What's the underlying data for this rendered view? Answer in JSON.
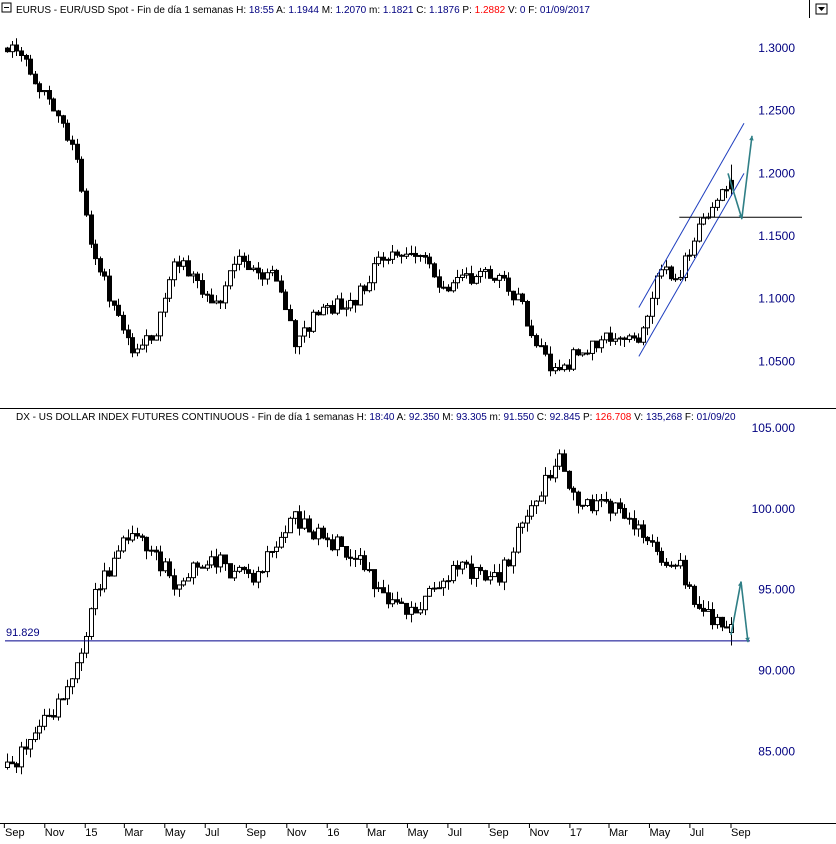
{
  "panels": {
    "top": {
      "header_prefix": "EURUS - EUR/USD Spot - Fin de día 1 semanas",
      "header_fields": [
        {
          "label": "H:",
          "value": "18:55",
          "color": "#000080"
        },
        {
          "label": "A:",
          "value": "1.1944",
          "color": "#000080"
        },
        {
          "label": "M:",
          "value": "1.2070",
          "color": "#000080"
        },
        {
          "label": "m:",
          "value": "1.1821",
          "color": "#000080"
        },
        {
          "label": "C:",
          "value": "1.1876",
          "color": "#000080"
        },
        {
          "label": "P:",
          "value": "1.2882",
          "color": "#ff0000"
        },
        {
          "label": "V:",
          "value": "0",
          "color": "#000080"
        },
        {
          "label": "F:",
          "value": "01/09/2017",
          "color": "#000080"
        }
      ]
    },
    "bottom": {
      "header_prefix": "DX - US DOLLAR INDEX FUTURES CONTINUOUS - Fin de día 1 semanas",
      "header_fields": [
        {
          "label": "H:",
          "value": "18:40",
          "color": "#000080"
        },
        {
          "label": "A:",
          "value": "92.350",
          "color": "#000080"
        },
        {
          "label": "M:",
          "value": "93.305",
          "color": "#000080"
        },
        {
          "label": "m:",
          "value": "91.550",
          "color": "#000080"
        },
        {
          "label": "C:",
          "value": "92.845",
          "color": "#000080"
        },
        {
          "label": "P:",
          "value": "126.708",
          "color": "#ff0000"
        },
        {
          "label": "V:",
          "value": "135,268",
          "color": "#000080"
        },
        {
          "label": "F:",
          "value": "01/09/20",
          "color": "#000080"
        }
      ],
      "support_label": "91.829"
    }
  },
  "chart_data": [
    {
      "type": "candlestick",
      "title": "EURUS - EUR/USD Spot - Fin de día 1 semanas",
      "timeframe": "weekly",
      "x_range": [
        "2014-09",
        "2017-09"
      ],
      "ylim": [
        1.02,
        1.32
      ],
      "y_ticks": [
        "1.3000",
        "1.2500",
        "1.2000",
        "1.1500",
        "1.1000",
        "1.0500"
      ],
      "grid": false,
      "approx_close_path": [
        {
          "date": "2014-09",
          "close": 1.3
        },
        {
          "date": "2014-11",
          "close": 1.25
        },
        {
          "date": "2014-12",
          "close": 1.22
        },
        {
          "date": "2015-01",
          "close": 1.13
        },
        {
          "date": "2015-03",
          "close": 1.06
        },
        {
          "date": "2015-04",
          "close": 1.07
        },
        {
          "date": "2015-05",
          "close": 1.13
        },
        {
          "date": "2015-06",
          "close": 1.12
        },
        {
          "date": "2015-07",
          "close": 1.09
        },
        {
          "date": "2015-08",
          "close": 1.13
        },
        {
          "date": "2015-09",
          "close": 1.12
        },
        {
          "date": "2015-10",
          "close": 1.12
        },
        {
          "date": "2015-11",
          "close": 1.06
        },
        {
          "date": "2015-12",
          "close": 1.09
        },
        {
          "date": "2016-02",
          "close": 1.1
        },
        {
          "date": "2016-03",
          "close": 1.13
        },
        {
          "date": "2016-05",
          "close": 1.14
        },
        {
          "date": "2016-06",
          "close": 1.11
        },
        {
          "date": "2016-08",
          "close": 1.12
        },
        {
          "date": "2016-09",
          "close": 1.12
        },
        {
          "date": "2016-10",
          "close": 1.1
        },
        {
          "date": "2016-11",
          "close": 1.06
        },
        {
          "date": "2016-12",
          "close": 1.04
        },
        {
          "date": "2017-01",
          "close": 1.06
        },
        {
          "date": "2017-03",
          "close": 1.07
        },
        {
          "date": "2017-04",
          "close": 1.07
        },
        {
          "date": "2017-05",
          "close": 1.12
        },
        {
          "date": "2017-06",
          "close": 1.12
        },
        {
          "date": "2017-07",
          "close": 1.16
        },
        {
          "date": "2017-08",
          "close": 1.18
        },
        {
          "date": "2017-09",
          "close": 1.19
        }
      ],
      "annotations": [
        {
          "kind": "rising-channel-upper",
          "from": {
            "date": "2017-04",
            "value": 1.093
          },
          "to": {
            "date": "2017-09",
            "value": 1.24
          }
        },
        {
          "kind": "rising-channel-lower",
          "from": {
            "date": "2017-04",
            "value": 1.054
          },
          "to": {
            "date": "2017-09",
            "value": 1.2
          }
        },
        {
          "kind": "horizontal-line",
          "value": 1.165,
          "from": "2017-06",
          "to": "2017-09"
        },
        {
          "kind": "arrow-up",
          "value": 1.23
        },
        {
          "kind": "arrow-down",
          "value": 1.165
        }
      ]
    },
    {
      "type": "candlestick",
      "title": "DX - US DOLLAR INDEX FUTURES CONTINUOUS - Fin de día 1 semanas",
      "timeframe": "weekly",
      "x_range": [
        "2014-09",
        "2017-09"
      ],
      "ylim": [
        81,
        105
      ],
      "y_ticks": [
        "105.000",
        "100.000",
        "95.000",
        "90.000",
        "85.000"
      ],
      "x_ticks": [
        "Sep",
        "Nov",
        "15",
        "Mar",
        "May",
        "Jul",
        "Sep",
        "Nov",
        "16",
        "Mar",
        "May",
        "Jul",
        "Sep",
        "Nov",
        "17",
        "Mar",
        "May",
        "Jul",
        "Sep"
      ],
      "grid": false,
      "approx_close_path": [
        {
          "date": "2014-09",
          "close": 84.0
        },
        {
          "date": "2014-10",
          "close": 86.0
        },
        {
          "date": "2014-11",
          "close": 87.5
        },
        {
          "date": "2014-12",
          "close": 89.5
        },
        {
          "date": "2015-01",
          "close": 94.5
        },
        {
          "date": "2015-03",
          "close": 99.0
        },
        {
          "date": "2015-04",
          "close": 97.0
        },
        {
          "date": "2015-05",
          "close": 95.5
        },
        {
          "date": "2015-06",
          "close": 96.5
        },
        {
          "date": "2015-07",
          "close": 97.0
        },
        {
          "date": "2015-08",
          "close": 96.0
        },
        {
          "date": "2015-09",
          "close": 96.0
        },
        {
          "date": "2015-11",
          "close": 99.5
        },
        {
          "date": "2015-12",
          "close": 98.5
        },
        {
          "date": "2016-02",
          "close": 97.0
        },
        {
          "date": "2016-03",
          "close": 95.0
        },
        {
          "date": "2016-05",
          "close": 93.5
        },
        {
          "date": "2016-06",
          "close": 95.5
        },
        {
          "date": "2016-07",
          "close": 96.5
        },
        {
          "date": "2016-09",
          "close": 95.5
        },
        {
          "date": "2016-10",
          "close": 98.5
        },
        {
          "date": "2016-11",
          "close": 101.0
        },
        {
          "date": "2016-12",
          "close": 103.0
        },
        {
          "date": "2017-01",
          "close": 100.5
        },
        {
          "date": "2017-03",
          "close": 100.0
        },
        {
          "date": "2017-04",
          "close": 99.0
        },
        {
          "date": "2017-05",
          "close": 97.0
        },
        {
          "date": "2017-06",
          "close": 96.5
        },
        {
          "date": "2017-07",
          "close": 93.5
        },
        {
          "date": "2017-08",
          "close": 93.0
        },
        {
          "date": "2017-09",
          "close": 92.8
        }
      ],
      "annotations": [
        {
          "kind": "horizontal-line",
          "value": 91.829,
          "label": "91.829"
        },
        {
          "kind": "arrow-up",
          "value": 95.5
        },
        {
          "kind": "arrow-down",
          "value": 92.0
        }
      ]
    }
  ],
  "colors": {
    "candle": "#000000",
    "axis_labels": "#000080",
    "channel": "#1f3fbf",
    "support_line": "#00008b",
    "arrows": "#2f7f86",
    "header_red": "#ff0000",
    "header_blue": "#000080"
  }
}
